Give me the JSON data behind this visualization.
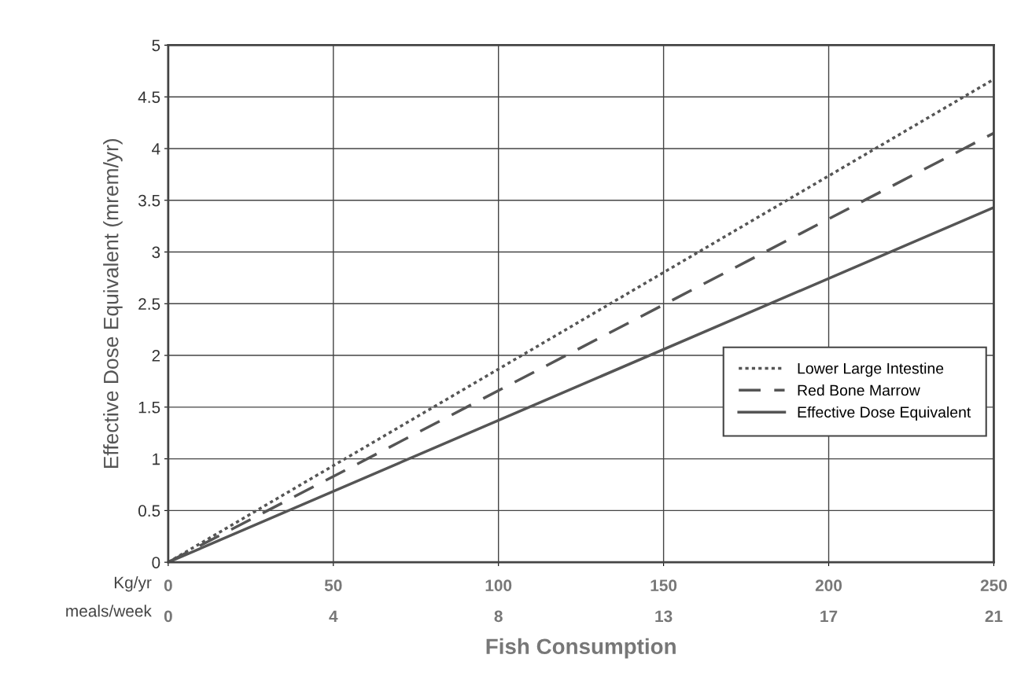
{
  "chart_data": {
    "type": "line",
    "xlabel": "Fish Consumption",
    "ylabel": "Effective Dose Equivalent (mrem/yr)",
    "x": [
      0,
      250
    ],
    "series": [
      {
        "name": "Lower Large Intestine",
        "color": "#555555",
        "values": [
          0,
          4.67
        ],
        "line_style": "dotted"
      },
      {
        "name": "Red Bone Marrow",
        "color": "#555555",
        "values": [
          0,
          4.15
        ],
        "line_style": "dashed"
      },
      {
        "name": "Effective Dose Equivalent",
        "color": "#555555",
        "values": [
          0,
          3.43
        ],
        "line_style": "solid"
      }
    ],
    "xlim": [
      0,
      250
    ],
    "xticks": [
      0,
      50,
      100,
      150,
      200,
      250
    ],
    "x2lim": [
      0,
      21
    ],
    "x2ticks": [
      0,
      {
        "value": 4.2,
        "label": "4"
      },
      {
        "value": 8.4,
        "label": "8"
      },
      {
        "value": 12.6,
        "label": "13"
      },
      {
        "value": 16.8,
        "label": "17"
      },
      21
    ],
    "ylim": [
      0,
      5
    ],
    "yticks": [
      0,
      0.5,
      1,
      1.5,
      2,
      2.5,
      3,
      3.5,
      4,
      4.5,
      5
    ],
    "grid": true,
    "legend": "right",
    "marker": "none",
    "annotations": [
      "Kg/yr",
      "meals/week"
    ]
  }
}
